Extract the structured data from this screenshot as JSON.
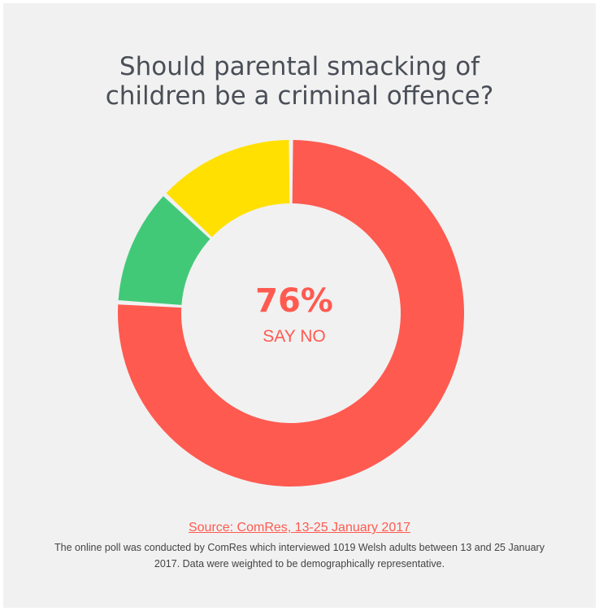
{
  "title_lines": [
    "Should parental smacking of",
    "children be a criminal offence?"
  ],
  "center": {
    "value": "76%",
    "label": "SAY NO"
  },
  "source": "Source: ComRes, 13-25 January 2017",
  "note": "The online poll was conducted by ComRes which interviewed 1019 Welsh adults between 13 and 25 January 2017. Data were weighted to be demographically representative.",
  "colors": {
    "no": "#ff5a50",
    "green": "#42c978",
    "yellow": "#ffe000",
    "background": "#f1f1f1"
  },
  "chart_data": {
    "type": "pie",
    "donut": true,
    "title": "Should parental smacking of children be a criminal offence?",
    "categories": [
      "No",
      "",
      ""
    ],
    "values": [
      76,
      11,
      13
    ],
    "colors": [
      "#ff5a50",
      "#42c978",
      "#ffe000"
    ]
  }
}
